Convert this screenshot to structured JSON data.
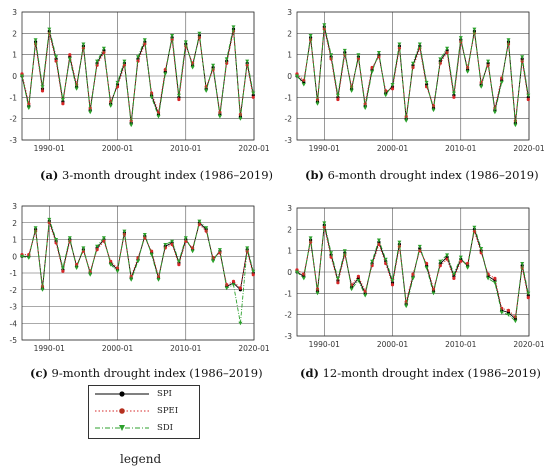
{
  "chart_data": [
    {
      "type": "line",
      "panel_letter": "(a)",
      "title": " 3-month drought index (1986–2019)",
      "x_ticks": [
        "1990-01",
        "2000-01",
        "2010-01",
        "2020-01"
      ],
      "y_ticks": [
        "3",
        "2",
        "1",
        "0",
        "-1",
        "-2",
        "-3"
      ],
      "ylim": [
        -3,
        3
      ],
      "xlim": [
        1986,
        2020
      ],
      "series": [
        {
          "name": "SPI",
          "x": [
            1986,
            1987,
            1988,
            1989,
            1990,
            1991,
            1992,
            1993,
            1994,
            1995,
            1996,
            1997,
            1998,
            1999,
            2000,
            2001,
            2002,
            2003,
            2004,
            2005,
            2006,
            2007,
            2008,
            2009,
            2010,
            2011,
            2012,
            2013,
            2014,
            2015,
            2016,
            2017,
            2018,
            2019,
            2019.9
          ],
          "values": [
            0.0,
            -1.4,
            1.6,
            -0.6,
            2.1,
            0.8,
            -1.2,
            0.9,
            -0.5,
            1.4,
            -1.6,
            0.6,
            1.2,
            -1.3,
            -0.4,
            0.6,
            -2.2,
            0.8,
            1.6,
            -0.9,
            -1.8,
            0.2,
            1.8,
            -1.0,
            1.5,
            0.5,
            1.9,
            -0.6,
            0.4,
            -1.8,
            0.7,
            2.2,
            -1.9,
            0.6,
            -0.9
          ]
        },
        {
          "name": "SPEI",
          "x": [
            1986,
            1987,
            1988,
            1989,
            1990,
            1991,
            1992,
            1993,
            1994,
            1995,
            1996,
            1997,
            1998,
            1999,
            2000,
            2001,
            2002,
            2003,
            2004,
            2005,
            2006,
            2007,
            2008,
            2009,
            2010,
            2011,
            2012,
            2013,
            2014,
            2015,
            2016,
            2017,
            2018,
            2019,
            2019.9
          ],
          "values": [
            0.1,
            -1.3,
            1.5,
            -0.7,
            2.0,
            0.7,
            -1.3,
            1.0,
            -0.4,
            1.3,
            -1.5,
            0.5,
            1.1,
            -1.2,
            -0.5,
            0.5,
            -2.1,
            0.7,
            1.5,
            -0.8,
            -1.7,
            0.3,
            1.7,
            -1.1,
            1.4,
            0.6,
            1.8,
            -0.5,
            0.3,
            -1.7,
            0.6,
            2.1,
            -1.8,
            0.5,
            -1.0
          ]
        },
        {
          "name": "SDI",
          "x": [
            1986,
            1987,
            1988,
            1989,
            1990,
            1991,
            1992,
            1993,
            1994,
            1995,
            1996,
            1997,
            1998,
            1999,
            2000,
            2001,
            2002,
            2003,
            2004,
            2005,
            2006,
            2007,
            2008,
            2009,
            2010,
            2011,
            2012,
            2013,
            2014,
            2015,
            2016,
            2017,
            2018,
            2019,
            2019.9
          ],
          "values": [
            0.0,
            -1.5,
            1.7,
            -0.5,
            2.2,
            0.9,
            -1.1,
            0.8,
            -0.6,
            1.5,
            -1.7,
            0.7,
            1.3,
            -1.4,
            -0.3,
            0.7,
            -2.3,
            0.9,
            1.7,
            -1.0,
            -1.9,
            0.1,
            1.9,
            -0.9,
            1.6,
            0.4,
            2.0,
            -0.7,
            0.5,
            -1.9,
            0.8,
            2.3,
            -2.0,
            0.7,
            -0.8
          ]
        }
      ]
    },
    {
      "type": "line",
      "panel_letter": "(b)",
      "title": " 6-month drought index (1986–2019)",
      "x_ticks": [
        "1990-01",
        "2000-01",
        "2010-01",
        "2020-01"
      ],
      "y_ticks": [
        "3",
        "2",
        "1",
        "0",
        "-1",
        "-2",
        "-3"
      ],
      "ylim": [
        -3,
        3
      ],
      "xlim": [
        1986,
        2020
      ],
      "series": [
        {
          "name": "SPI",
          "x": [
            1986,
            1987,
            1988,
            1989,
            1990,
            1991,
            1992,
            1993,
            1994,
            1995,
            1996,
            1997,
            1998,
            1999,
            2000,
            2001,
            2002,
            2003,
            2004,
            2005,
            2006,
            2007,
            2008,
            2009,
            2010,
            2011,
            2012,
            2013,
            2014,
            2015,
            2016,
            2017,
            2018,
            2019,
            2019.9
          ],
          "values": [
            0.0,
            -0.3,
            1.8,
            -1.2,
            2.3,
            0.9,
            -1.0,
            1.1,
            -0.6,
            0.9,
            -1.4,
            0.3,
            1.0,
            -0.8,
            -0.5,
            1.4,
            -2.0,
            0.5,
            1.4,
            -0.4,
            -1.5,
            0.7,
            1.2,
            -0.9,
            1.7,
            0.3,
            2.1,
            -0.4,
            0.6,
            -1.6,
            -0.2,
            1.6,
            -2.2,
            0.8,
            -1.0
          ]
        },
        {
          "name": "SPEI",
          "x": [
            1986,
            1987,
            1988,
            1989,
            1990,
            1991,
            1992,
            1993,
            1994,
            1995,
            1996,
            1997,
            1998,
            1999,
            2000,
            2001,
            2002,
            2003,
            2004,
            2005,
            2006,
            2007,
            2008,
            2009,
            2010,
            2011,
            2012,
            2013,
            2014,
            2015,
            2016,
            2017,
            2018,
            2019,
            2019.9
          ],
          "values": [
            0.1,
            -0.2,
            1.7,
            -1.1,
            2.2,
            0.8,
            -1.1,
            1.0,
            -0.5,
            0.8,
            -1.3,
            0.4,
            0.9,
            -0.7,
            -0.6,
            1.3,
            -1.9,
            0.4,
            1.3,
            -0.5,
            -1.4,
            0.6,
            1.1,
            -1.0,
            1.6,
            0.4,
            2.0,
            -0.3,
            0.5,
            -1.5,
            -0.1,
            1.5,
            -2.1,
            0.7,
            -1.1
          ]
        },
        {
          "name": "SDI",
          "x": [
            1986,
            1987,
            1988,
            1989,
            1990,
            1991,
            1992,
            1993,
            1994,
            1995,
            1996,
            1997,
            1998,
            1999,
            2000,
            2001,
            2002,
            2003,
            2004,
            2005,
            2006,
            2007,
            2008,
            2009,
            2010,
            2011,
            2012,
            2013,
            2014,
            2015,
            2016,
            2017,
            2018,
            2019,
            2019.9
          ],
          "values": [
            0.0,
            -0.4,
            1.9,
            -1.3,
            2.4,
            1.0,
            -0.9,
            1.2,
            -0.7,
            1.0,
            -1.5,
            0.2,
            1.1,
            -0.9,
            -0.4,
            1.5,
            -2.1,
            0.6,
            1.5,
            -0.3,
            -1.6,
            0.8,
            1.3,
            -0.8,
            1.8,
            0.2,
            2.2,
            -0.5,
            0.7,
            -1.7,
            -0.3,
            1.7,
            -2.3,
            0.9,
            -0.9
          ]
        }
      ]
    },
    {
      "type": "line",
      "panel_letter": "(c)",
      "title": " 9-month drought index (1986–2019)",
      "x_ticks": [
        "1990-01",
        "2000-01",
        "2010-01",
        "2020-01"
      ],
      "y_ticks": [
        "3",
        "2",
        "1",
        "0",
        "-1",
        "-2",
        "-3",
        "-4",
        "-5"
      ],
      "ylim": [
        -5,
        3
      ],
      "xlim": [
        1986,
        2020
      ],
      "series": [
        {
          "name": "SPI",
          "x": [
            1986,
            1987,
            1988,
            1989,
            1990,
            1991,
            1992,
            1993,
            1994,
            1995,
            1996,
            1997,
            1998,
            1999,
            2000,
            2001,
            2002,
            2003,
            2004,
            2005,
            2006,
            2007,
            2008,
            2009,
            2010,
            2011,
            2012,
            2013,
            2014,
            2015,
            2016,
            2017,
            2018,
            2019,
            2019.9
          ],
          "values": [
            0.0,
            0.0,
            1.6,
            -1.9,
            2.1,
            0.9,
            -0.8,
            1.0,
            -0.6,
            0.4,
            -1.0,
            0.5,
            1.0,
            -0.4,
            -0.8,
            1.4,
            -1.3,
            -0.2,
            1.2,
            0.2,
            -1.3,
            0.6,
            0.8,
            -0.4,
            1.0,
            0.4,
            2.0,
            1.6,
            -0.2,
            0.3,
            -1.8,
            -1.6,
            -2.0,
            0.4,
            -1.0
          ]
        },
        {
          "name": "SPEI",
          "x": [
            1986,
            1987,
            1988,
            1989,
            1990,
            1991,
            1992,
            1993,
            1994,
            1995,
            1996,
            1997,
            1998,
            1999,
            2000,
            2001,
            2002,
            2003,
            2004,
            2005,
            2006,
            2007,
            2008,
            2009,
            2010,
            2011,
            2012,
            2013,
            2014,
            2015,
            2016,
            2017,
            2018,
            2019,
            2019.9
          ],
          "values": [
            0.1,
            0.1,
            1.5,
            -1.8,
            2.0,
            0.8,
            -0.9,
            0.9,
            -0.5,
            0.3,
            -0.9,
            0.4,
            0.9,
            -0.3,
            -0.7,
            1.3,
            -1.2,
            -0.1,
            1.1,
            0.3,
            -1.2,
            0.5,
            0.7,
            -0.5,
            0.9,
            0.5,
            1.9,
            1.5,
            -0.1,
            0.2,
            -1.7,
            -1.5,
            -1.9,
            0.3,
            -1.1
          ]
        },
        {
          "name": "SDI",
          "x": [
            1986,
            1987,
            1988,
            1989,
            1990,
            1991,
            1992,
            1993,
            1994,
            1995,
            1996,
            1997,
            1998,
            1999,
            2000,
            2001,
            2002,
            2003,
            2004,
            2005,
            2006,
            2007,
            2008,
            2009,
            2010,
            2011,
            2012,
            2013,
            2014,
            2015,
            2016,
            2017,
            2018,
            2019,
            2019.9
          ],
          "values": [
            0.0,
            -0.1,
            1.7,
            -2.0,
            2.2,
            1.0,
            -0.7,
            1.1,
            -0.7,
            0.5,
            -1.1,
            0.6,
            1.1,
            -0.5,
            -0.9,
            1.5,
            -1.4,
            -0.3,
            1.3,
            0.1,
            -1.4,
            0.7,
            0.9,
            -0.3,
            1.1,
            0.3,
            2.1,
            1.7,
            -0.3,
            0.4,
            -1.9,
            -1.7,
            -4.0,
            0.5,
            -0.9
          ]
        }
      ]
    },
    {
      "type": "line",
      "panel_letter": "(d)",
      "title": " 12-month drought index (1986–2019)",
      "x_ticks": [
        "1990-01",
        "2000-01",
        "2010-01",
        "2020-01"
      ],
      "y_ticks": [
        "3",
        "2",
        "1",
        "0",
        "-1",
        "-2",
        "-3"
      ],
      "ylim": [
        -3,
        3
      ],
      "xlim": [
        1986,
        2020
      ],
      "series": [
        {
          "name": "SPI",
          "x": [
            1986,
            1987,
            1988,
            1989,
            1990,
            1991,
            1992,
            1993,
            1994,
            1995,
            1996,
            1997,
            1998,
            1999,
            2000,
            2001,
            2002,
            2003,
            2004,
            2005,
            2006,
            2007,
            2008,
            2009,
            2010,
            2011,
            2012,
            2013,
            2014,
            2015,
            2016,
            2017,
            2018,
            2019,
            2019.9
          ],
          "values": [
            0.0,
            -0.2,
            1.5,
            -0.9,
            2.2,
            0.8,
            -0.4,
            0.9,
            -0.7,
            -0.3,
            -1.0,
            0.4,
            1.4,
            0.5,
            -0.5,
            1.3,
            -1.5,
            -0.2,
            1.1,
            0.3,
            -0.9,
            0.4,
            0.7,
            -0.2,
            0.6,
            0.3,
            2.0,
            1.0,
            -0.2,
            -0.4,
            -1.8,
            -1.9,
            -2.2,
            0.3,
            -1.1
          ]
        },
        {
          "name": "SPEI",
          "x": [
            1986,
            1987,
            1988,
            1989,
            1990,
            1991,
            1992,
            1993,
            1994,
            1995,
            1996,
            1997,
            1998,
            1999,
            2000,
            2001,
            2002,
            2003,
            2004,
            2005,
            2006,
            2007,
            2008,
            2009,
            2010,
            2011,
            2012,
            2013,
            2014,
            2015,
            2016,
            2017,
            2018,
            2019,
            2019.9
          ],
          "values": [
            0.1,
            -0.1,
            1.4,
            -0.8,
            2.1,
            0.7,
            -0.5,
            0.8,
            -0.6,
            -0.2,
            -0.9,
            0.3,
            1.3,
            0.4,
            -0.6,
            1.2,
            -1.4,
            -0.1,
            1.0,
            0.4,
            -0.8,
            0.3,
            0.6,
            -0.3,
            0.5,
            0.4,
            1.9,
            0.9,
            -0.1,
            -0.3,
            -1.7,
            -1.8,
            -2.1,
            0.2,
            -1.2
          ]
        },
        {
          "name": "SDI",
          "x": [
            1986,
            1987,
            1988,
            1989,
            1990,
            1991,
            1992,
            1993,
            1994,
            1995,
            1996,
            1997,
            1998,
            1999,
            2000,
            2001,
            2002,
            2003,
            2004,
            2005,
            2006,
            2007,
            2008,
            2009,
            2010,
            2011,
            2012,
            2013,
            2014,
            2015,
            2016,
            2017,
            2018,
            2019,
            2019.9
          ],
          "values": [
            0.0,
            -0.3,
            1.6,
            -1.0,
            2.3,
            0.9,
            -0.3,
            1.0,
            -0.8,
            -0.4,
            -1.1,
            0.5,
            1.5,
            0.6,
            -0.4,
            1.4,
            -1.6,
            -0.3,
            1.2,
            0.2,
            -1.0,
            0.5,
            0.8,
            -0.1,
            0.7,
            0.2,
            2.1,
            1.1,
            -0.3,
            -0.5,
            -1.9,
            -2.0,
            -2.3,
            0.4,
            -1.0
          ]
        }
      ]
    }
  ],
  "legend": {
    "items": [
      {
        "label": "SPI",
        "color": "#000000",
        "marker": "circle",
        "dash": "solid"
      },
      {
        "label": "SPEI",
        "color": "#d62728",
        "marker": "circle",
        "dash": "dotted"
      },
      {
        "label": "SDI",
        "color": "#2ca02c",
        "marker": "triangle",
        "dash": "dashdot"
      }
    ],
    "caption": "legend"
  }
}
